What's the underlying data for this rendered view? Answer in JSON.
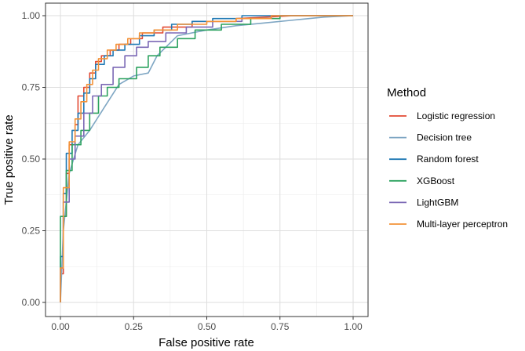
{
  "chart_data": {
    "type": "line",
    "title": "",
    "xlabel": "False positive rate",
    "ylabel": "True positive rate",
    "xlim": [
      0,
      1
    ],
    "ylim": [
      0,
      1
    ],
    "x_ticks": [
      0,
      0.25,
      0.5,
      0.75,
      1
    ],
    "x_tick_labels": [
      "0.00",
      "0.25",
      "0.50",
      "0.75",
      "1.00"
    ],
    "y_ticks": [
      0,
      0.25,
      0.5,
      0.75,
      1
    ],
    "y_tick_labels": [
      "0.00",
      "0.25",
      "0.50",
      "0.75",
      "1.00"
    ],
    "grid": true,
    "legend": {
      "title": "Method",
      "placement": "right"
    },
    "series": [
      {
        "name": "Logistic regression",
        "color": "#e24a33",
        "x": [
          0,
          0,
          0.01,
          0.01,
          0.02,
          0.02,
          0.03,
          0.03,
          0.05,
          0.05,
          0.06,
          0.06,
          0.08,
          0.08,
          0.1,
          0.1,
          0.12,
          0.12,
          0.14,
          0.14,
          0.17,
          0.17,
          0.2,
          0.2,
          0.24,
          0.24,
          0.28,
          0.28,
          0.35,
          0.35,
          0.45,
          0.45,
          0.6,
          0.6,
          0.8,
          1
        ],
        "y": [
          0,
          0.1,
          0.1,
          0.3,
          0.3,
          0.45,
          0.45,
          0.55,
          0.55,
          0.62,
          0.62,
          0.72,
          0.72,
          0.75,
          0.75,
          0.8,
          0.8,
          0.84,
          0.84,
          0.86,
          0.86,
          0.88,
          0.88,
          0.9,
          0.9,
          0.92,
          0.92,
          0.94,
          0.94,
          0.96,
          0.96,
          0.98,
          0.98,
          0.99,
          1,
          1
        ]
      },
      {
        "name": "Decision tree",
        "color": "#7ea6c3",
        "x": [
          0,
          0.01,
          0.03,
          0.06,
          0.1,
          0.15,
          0.2,
          0.25,
          0.3,
          0.33,
          0.4,
          0.5,
          0.6,
          0.7,
          0.8,
          0.9,
          1
        ],
        "y": [
          0,
          0.25,
          0.45,
          0.55,
          0.6,
          0.68,
          0.76,
          0.79,
          0.8,
          0.86,
          0.93,
          0.95,
          0.965,
          0.975,
          0.985,
          0.995,
          1
        ]
      },
      {
        "name": "Random forest",
        "color": "#1f78b4",
        "x": [
          0,
          0,
          0.01,
          0.01,
          0.02,
          0.02,
          0.04,
          0.04,
          0.06,
          0.06,
          0.08,
          0.08,
          0.1,
          0.1,
          0.12,
          0.12,
          0.15,
          0.15,
          0.18,
          0.18,
          0.22,
          0.22,
          0.27,
          0.27,
          0.32,
          0.32,
          0.38,
          0.38,
          0.45,
          0.45,
          0.52,
          0.52,
          0.62,
          0.62,
          0.75,
          0.75,
          1
        ],
        "y": [
          0,
          0.16,
          0.16,
          0.38,
          0.38,
          0.52,
          0.52,
          0.6,
          0.6,
          0.66,
          0.66,
          0.73,
          0.73,
          0.78,
          0.78,
          0.83,
          0.83,
          0.86,
          0.86,
          0.88,
          0.88,
          0.9,
          0.9,
          0.93,
          0.93,
          0.95,
          0.95,
          0.97,
          0.97,
          0.98,
          0.98,
          0.99,
          0.99,
          1,
          1,
          1,
          1
        ]
      },
      {
        "name": "XGBoost",
        "color": "#2ca25f",
        "x": [
          0,
          0,
          0.02,
          0.02,
          0.04,
          0.04,
          0.07,
          0.07,
          0.1,
          0.1,
          0.13,
          0.13,
          0.16,
          0.16,
          0.2,
          0.2,
          0.26,
          0.26,
          0.3,
          0.3,
          0.34,
          0.34,
          0.4,
          0.4,
          0.46,
          0.46,
          0.55,
          0.55,
          0.65,
          0.65,
          0.75,
          0.75,
          1
        ],
        "y": [
          0,
          0.3,
          0.3,
          0.46,
          0.46,
          0.55,
          0.55,
          0.6,
          0.6,
          0.66,
          0.66,
          0.72,
          0.72,
          0.75,
          0.75,
          0.78,
          0.78,
          0.82,
          0.82,
          0.86,
          0.86,
          0.89,
          0.89,
          0.92,
          0.92,
          0.95,
          0.95,
          0.97,
          0.97,
          0.99,
          0.99,
          1,
          1
        ]
      },
      {
        "name": "LightGBM",
        "color": "#7b68b5",
        "x": [
          0,
          0,
          0.01,
          0.01,
          0.03,
          0.03,
          0.05,
          0.05,
          0.08,
          0.08,
          0.11,
          0.11,
          0.14,
          0.14,
          0.18,
          0.18,
          0.22,
          0.22,
          0.26,
          0.26,
          0.3,
          0.3,
          0.36,
          0.36,
          0.43,
          0.43,
          0.52,
          0.52,
          0.62,
          0.62,
          0.72,
          0.72,
          1
        ],
        "y": [
          0,
          0.12,
          0.12,
          0.35,
          0.35,
          0.5,
          0.5,
          0.58,
          0.58,
          0.66,
          0.66,
          0.72,
          0.72,
          0.76,
          0.76,
          0.82,
          0.82,
          0.86,
          0.86,
          0.89,
          0.89,
          0.91,
          0.91,
          0.94,
          0.94,
          0.96,
          0.96,
          0.98,
          0.98,
          0.99,
          0.99,
          1,
          1
        ]
      },
      {
        "name": "Multi-layer perceptron",
        "color": "#f39237",
        "x": [
          0,
          0,
          0.01,
          0.01,
          0.03,
          0.03,
          0.05,
          0.05,
          0.07,
          0.07,
          0.09,
          0.09,
          0.11,
          0.11,
          0.13,
          0.13,
          0.16,
          0.16,
          0.19,
          0.19,
          0.23,
          0.23,
          0.27,
          0.27,
          0.32,
          0.32,
          0.4,
          0.4,
          0.5,
          0.5,
          0.6,
          0.6,
          0.72,
          0.72,
          1
        ],
        "y": [
          0,
          0.12,
          0.12,
          0.4,
          0.4,
          0.56,
          0.56,
          0.64,
          0.64,
          0.7,
          0.7,
          0.76,
          0.76,
          0.81,
          0.81,
          0.85,
          0.85,
          0.88,
          0.88,
          0.9,
          0.9,
          0.92,
          0.92,
          0.94,
          0.94,
          0.95,
          0.95,
          0.97,
          0.97,
          0.98,
          0.98,
          0.99,
          0.99,
          1,
          1
        ]
      }
    ]
  }
}
